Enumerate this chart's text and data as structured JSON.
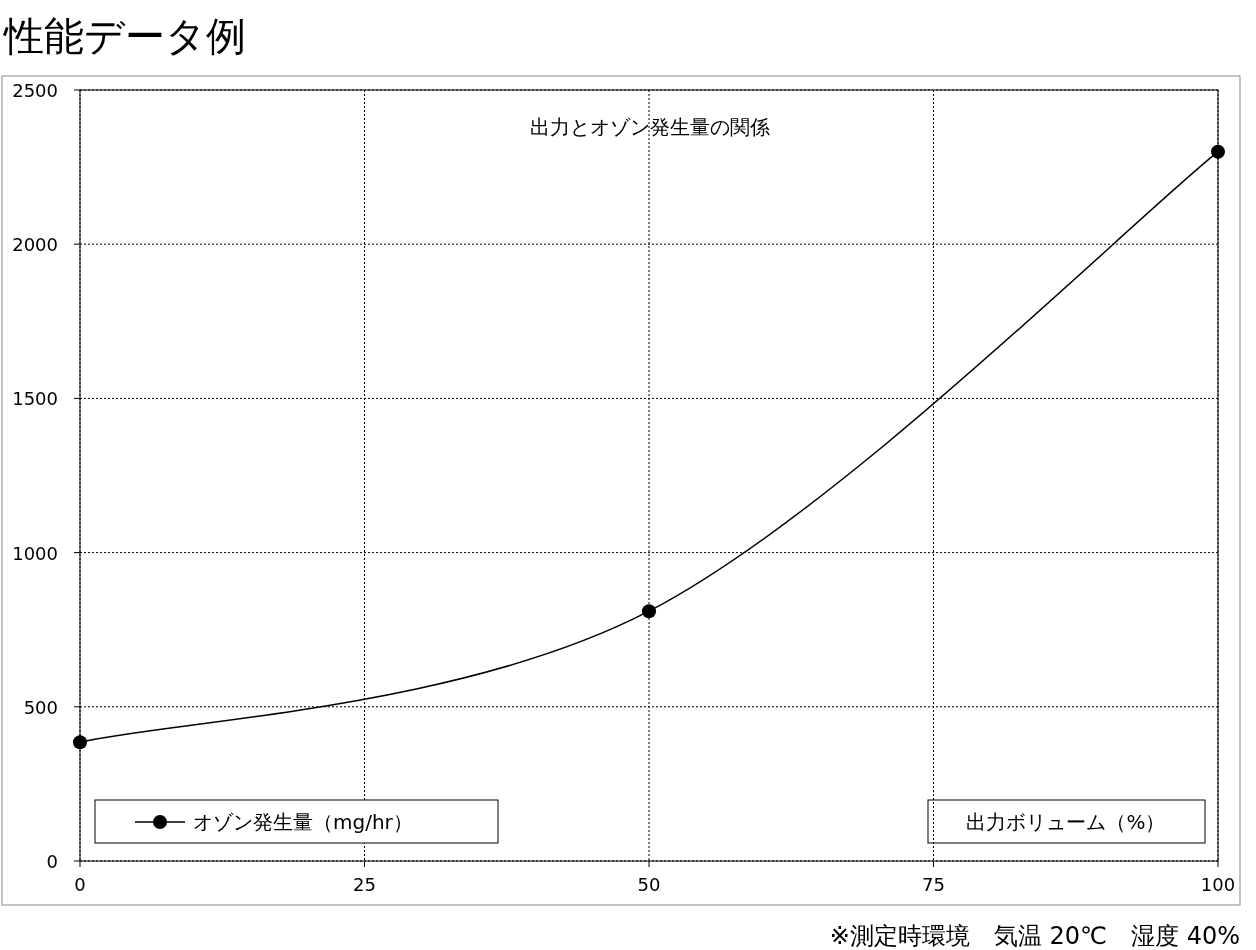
{
  "chart_data": {
    "type": "line",
    "title": "性能データ例",
    "subtitle": "出力とオゾン発生量の関係",
    "xlabel": "出力ボリューム（%）",
    "annotations": [
      "※測定時環境　気温 20℃　湿度 40%"
    ],
    "x": [
      0,
      50,
      100
    ],
    "series": [
      {
        "name": "オゾン発生量（mg/hr）",
        "color": "#000000",
        "values": [
          385,
          810,
          2300
        ]
      }
    ],
    "xlim": [
      0,
      100
    ],
    "xticks": [
      0,
      25,
      50,
      75,
      100
    ],
    "ylim": [
      0,
      2500
    ],
    "yticks": [
      0,
      500,
      1000,
      1500,
      2000,
      2500
    ],
    "grid": true,
    "legend": "bottom left",
    "marker": "circle",
    "line_style": "solid"
  }
}
